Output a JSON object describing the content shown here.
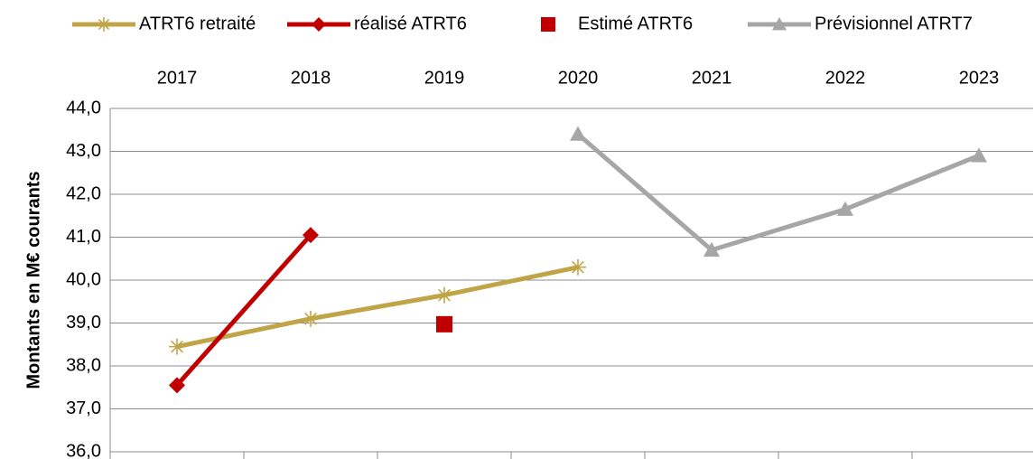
{
  "chart_data": {
    "type": "line",
    "y_label": "Montants en M€ courants",
    "categories": [
      "2017",
      "2018",
      "2019",
      "2020",
      "2021",
      "2022",
      "2023"
    ],
    "series": [
      {
        "name": "ATRT6 retraité",
        "color": "#bfa547",
        "marker": "star",
        "line": true,
        "values": [
          38.45,
          39.1,
          39.65,
          40.3,
          null,
          null,
          null
        ]
      },
      {
        "name": "réalisé ATRT6",
        "color": "#c00000",
        "marker": "diamond",
        "line": true,
        "values": [
          37.55,
          41.05,
          null,
          null,
          null,
          null,
          null
        ]
      },
      {
        "name": "Estimé ATRT6",
        "color": "#c00000",
        "marker": "square",
        "line": false,
        "values": [
          null,
          null,
          38.97,
          null,
          null,
          null,
          null
        ]
      },
      {
        "name": "Prévisionnel ATRT7",
        "color": "#a6a6a6",
        "marker": "triangle",
        "line": true,
        "values": [
          null,
          null,
          null,
          43.4,
          40.7,
          41.65,
          42.9
        ]
      }
    ],
    "ylim": [
      36,
      44
    ],
    "yticks": [
      {
        "value": 36,
        "label": "36,0"
      },
      {
        "value": 37,
        "label": "37,0"
      },
      {
        "value": 38,
        "label": "38,0"
      },
      {
        "value": 39,
        "label": "39,0"
      },
      {
        "value": 40,
        "label": "40,0"
      },
      {
        "value": 41,
        "label": "41,0"
      },
      {
        "value": 42,
        "label": "42,0"
      },
      {
        "value": 43,
        "label": "43,0"
      },
      {
        "value": 44,
        "label": "44,0"
      }
    ],
    "grid": true,
    "legend": "top"
  }
}
